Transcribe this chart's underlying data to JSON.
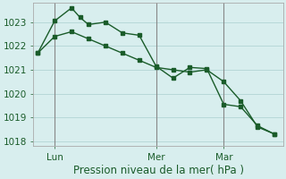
{
  "background_color": "#d8eeee",
  "grid_color": "#b8d8d8",
  "line_color": "#1a5c2a",
  "vline_color": "#888888",
  "smooth_x": [
    0,
    2,
    4,
    6,
    8,
    10,
    12,
    14,
    16,
    18,
    20,
    22,
    24,
    26,
    28
  ],
  "smooth_y": [
    1021.7,
    1022.4,
    1022.6,
    1022.3,
    1022.0,
    1021.7,
    1021.4,
    1021.1,
    1021.0,
    1020.9,
    1021.0,
    1020.5,
    1019.7,
    1018.6,
    1018.3
  ],
  "jagged_x": [
    0,
    2,
    4,
    5,
    6,
    8,
    10,
    12,
    14,
    16,
    18,
    20,
    22,
    24,
    26,
    28
  ],
  "jagged_y": [
    1021.7,
    1023.05,
    1023.6,
    1023.2,
    1022.9,
    1023.0,
    1022.55,
    1022.45,
    1021.15,
    1020.65,
    1021.1,
    1021.05,
    1019.55,
    1019.45,
    1018.65,
    1018.3
  ],
  "vlines_x": [
    2,
    14,
    22
  ],
  "xlim": [
    -0.5,
    29
  ],
  "ylim": [
    1017.8,
    1023.8
  ],
  "ytick_values": [
    1018,
    1019,
    1020,
    1021,
    1022,
    1023
  ],
  "xtick_positions": [
    2,
    14,
    22
  ],
  "xtick_labels": [
    "Lun",
    "Mer",
    "Mar"
  ],
  "xlabel": "Pression niveau de la mer( hPa )",
  "xlabel_fontsize": 8.5,
  "tick_fontsize": 7.5,
  "ytick_fontsize": 7.5,
  "linewidth": 1.0,
  "markersize": 2.8
}
